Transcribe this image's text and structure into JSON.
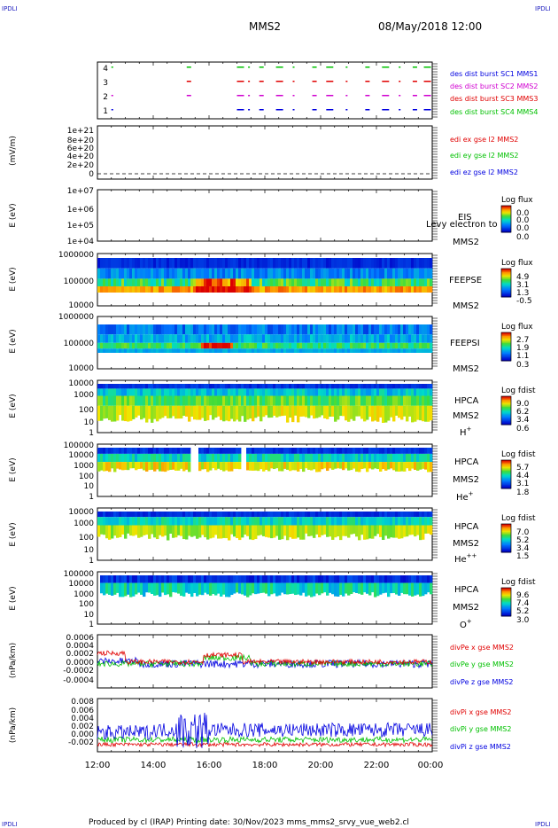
{
  "header": {
    "corner_tl": "IPDLI",
    "corner_tr": "IPDLI",
    "corner_bl": "IPDLI",
    "corner_br": "IPDLI",
    "spacecraft": "MMS2",
    "datetime": "08/May/2018 12:00"
  },
  "footer": {
    "text": "Produced by cl (IRAP)   Printing date: 30/Nov/2023   mms_mms2_srvy_vue_web2.cl"
  },
  "colors": {
    "red": "#e00000",
    "green": "#00c000",
    "blue": "#0000e0",
    "magenta": "#d000d0",
    "label_blue": "#2020c0"
  },
  "time_axis": {
    "ticks": [
      "12:00",
      "14:00",
      "16:00",
      "18:00",
      "20:00",
      "22:00",
      "00:00"
    ],
    "range_hours": [
      12,
      24
    ]
  },
  "chart_data": [
    {
      "type": "scatter",
      "panel": "burst",
      "yticks": [
        "4",
        "3",
        "2",
        "1"
      ],
      "legend": [
        {
          "text": "des dist burst SC1 MMS1",
          "color": "#0000e0"
        },
        {
          "text": "des dist burst SC2 MMS2",
          "color": "#d000d0"
        },
        {
          "text": "des dist burst SC3 MMS3",
          "color": "#e00000"
        },
        {
          "text": "des dist burst SC4 MMS4",
          "color": "#00c000"
        }
      ],
      "x": [
        12.5,
        15.2,
        17.0,
        17.4,
        17.8,
        18.4,
        19.0,
        19.7,
        20.2,
        20.9,
        21.6,
        22.2,
        22.8,
        23.3,
        23.7
      ],
      "series": [
        {
          "name": "MMS1",
          "y": 1
        },
        {
          "name": "MMS2",
          "y": 2
        },
        {
          "name": "MMS3",
          "y": 3
        },
        {
          "name": "MMS4",
          "y": 4
        }
      ]
    },
    {
      "type": "line",
      "panel": "edi",
      "ylabel": "(mV/m)",
      "yticks": [
        "1e+21",
        "8e+20",
        "6e+20",
        "4e+20",
        "2e+20",
        "0"
      ],
      "legend": [
        {
          "text": "edi ex gse l2 MMS2",
          "color": "#e00000"
        },
        {
          "text": "edi ey gse l2 MMS2",
          "color": "#00c000"
        },
        {
          "text": "edi ez gse l2 MMS2",
          "color": "#0000e0"
        }
      ]
    },
    {
      "type": "heatmap",
      "panel": "eis",
      "ylabel": "E (eV)",
      "yticks": [
        "1e+07",
        "1e+06",
        "1e+05",
        "1e+04"
      ],
      "labels": [
        "EIS",
        "MMS2"
      ],
      "overlay_text": "Levy electron to",
      "colorbar_title": "Log flux",
      "colorbar_ticks": [
        "0.0",
        "0.0",
        "0.0",
        "0.0"
      ]
    },
    {
      "type": "heatmap",
      "panel": "feepse",
      "ylabel": "E (eV)",
      "yticks": [
        "1000000",
        "100000",
        "10000"
      ],
      "labels": [
        "FEEPSE",
        "MMS2"
      ],
      "colorbar_title": "Log flux",
      "colorbar_ticks": [
        "4.9",
        "3.1",
        "1.3",
        "-0.5"
      ]
    },
    {
      "type": "heatmap",
      "panel": "feepsi",
      "ylabel": "E (eV)",
      "yticks": [
        "1000000",
        "100000",
        "10000"
      ],
      "labels": [
        "FEEPSI",
        "MMS2"
      ],
      "colorbar_title": "Log flux",
      "colorbar_ticks": [
        "2.7",
        "1.9",
        "1.1",
        "0.3"
      ]
    },
    {
      "type": "heatmap",
      "panel": "hpca_h",
      "ylabel": "E (eV)",
      "yticks": [
        "10000",
        "1000",
        "100",
        "10",
        "1"
      ],
      "labels": [
        "HPCA",
        "MMS2"
      ],
      "species": "H",
      "species_sup": "+",
      "colorbar_title": "Log fdist",
      "colorbar_ticks": [
        "9.0",
        "6.2",
        "3.4",
        "0.6"
      ]
    },
    {
      "type": "heatmap",
      "panel": "hpca_he",
      "ylabel": "E (eV)",
      "yticks": [
        "100000",
        "10000",
        "1000",
        "100",
        "10",
        "1"
      ],
      "labels": [
        "HPCA",
        "MMS2"
      ],
      "species": "He",
      "species_sup": "+",
      "colorbar_title": "Log fdist",
      "colorbar_ticks": [
        "5.7",
        "4.4",
        "3.1",
        "1.8"
      ]
    },
    {
      "type": "heatmap",
      "panel": "hpca_hepp",
      "ylabel": "E (eV)",
      "yticks": [
        "10000",
        "1000",
        "100",
        "10",
        "1"
      ],
      "labels": [
        "HPCA",
        "MMS2"
      ],
      "species": "He",
      "species_sup": "++",
      "colorbar_title": "Log fdist",
      "colorbar_ticks": [
        "7.0",
        "5.2",
        "3.4",
        "1.5"
      ]
    },
    {
      "type": "heatmap",
      "panel": "hpca_o",
      "ylabel": "E (eV)",
      "yticks": [
        "100000",
        "10000",
        "1000",
        "100",
        "10",
        "1"
      ],
      "labels": [
        "HPCA",
        "MMS2"
      ],
      "species": "O",
      "species_sup": "+",
      "colorbar_title": "Log fdist",
      "colorbar_ticks": [
        "9.6",
        "7.4",
        "5.2",
        "3.0"
      ]
    },
    {
      "type": "line",
      "panel": "divpe",
      "ylabel": "(nPa/km)",
      "yticks": [
        "0.0006",
        "0.0004",
        "0.0002",
        "0.0000",
        "-0.0002",
        "-0.0004"
      ],
      "ylim": [
        -0.0005,
        0.0006
      ],
      "legend": [
        {
          "text": "divPe x gse MMS2",
          "color": "#e00000"
        },
        {
          "text": "divPe y gse MMS2",
          "color": "#00c000"
        },
        {
          "text": "divPe z gse MMS2",
          "color": "#0000e0"
        }
      ]
    },
    {
      "type": "line",
      "panel": "divpi",
      "ylabel": "(nPa/km)",
      "yticks": [
        "0.008",
        "0.006",
        "0.004",
        "0.002",
        "0.000",
        "-0.002"
      ],
      "ylim": [
        -0.003,
        0.008
      ],
      "legend": [
        {
          "text": "divPi x gse MMS2",
          "color": "#e00000"
        },
        {
          "text": "divPi y gse MMS2",
          "color": "#00c000"
        },
        {
          "text": "divPi z gse MMS2",
          "color": "#0000e0"
        }
      ]
    }
  ]
}
